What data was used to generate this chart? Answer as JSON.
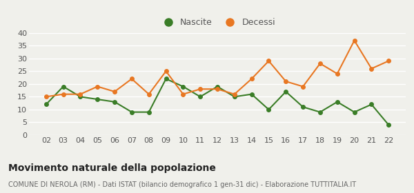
{
  "years": [
    "02",
    "03",
    "04",
    "05",
    "06",
    "07",
    "08",
    "09",
    "10",
    "11",
    "12",
    "13",
    "14",
    "15",
    "16",
    "17",
    "18",
    "19",
    "20",
    "21",
    "22"
  ],
  "nascite": [
    12,
    19,
    15,
    14,
    13,
    9,
    9,
    22,
    19,
    15,
    19,
    15,
    16,
    10,
    17,
    11,
    9,
    13,
    9,
    12,
    4
  ],
  "decessi": [
    15,
    16,
    16,
    19,
    17,
    22,
    16,
    25,
    16,
    18,
    18,
    16,
    22,
    29,
    21,
    19,
    28,
    24,
    37,
    26,
    29
  ],
  "nascite_color": "#3a7d27",
  "decessi_color": "#e87722",
  "background_color": "#f0f0eb",
  "grid_color": "#ffffff",
  "title": "Movimento naturale della popolazione",
  "subtitle": "COMUNE DI NEROLA (RM) - Dati ISTAT (bilancio demografico 1 gen-31 dic) - Elaborazione TUTTITALIA.IT",
  "legend_nascite": "Nascite",
  "legend_decessi": "Decessi",
  "ylim": [
    0,
    40
  ],
  "yticks": [
    0,
    5,
    10,
    15,
    20,
    25,
    30,
    35,
    40
  ],
  "title_fontsize": 10,
  "subtitle_fontsize": 7,
  "tick_fontsize": 8,
  "legend_fontsize": 9
}
